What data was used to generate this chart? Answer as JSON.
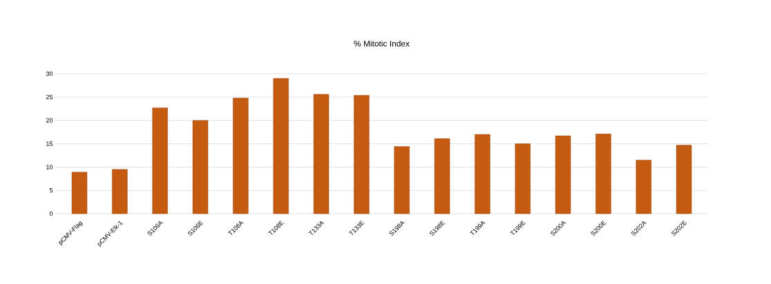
{
  "chart_data": {
    "type": "bar",
    "title": "% Mitotic Index",
    "categories": [
      "pCMV-Flag",
      "pCMV-Elk-1",
      "S106A",
      "S106E",
      "T108A",
      "T108E",
      "T133A",
      "T133E",
      "S198A",
      "S198E",
      "T199A",
      "T199E",
      "S200A",
      "S200E",
      "S202A",
      "S202E"
    ],
    "values": [
      8.9,
      9.5,
      22.7,
      20.0,
      24.8,
      29.0,
      25.6,
      25.4,
      14.4,
      16.1,
      17.0,
      15.0,
      16.7,
      17.1,
      11.5,
      14.7
    ],
    "color": "#c55a11",
    "ylim": [
      0,
      30
    ],
    "yticks": [
      0,
      5,
      10,
      15,
      20,
      25,
      30
    ],
    "grid": "y"
  }
}
